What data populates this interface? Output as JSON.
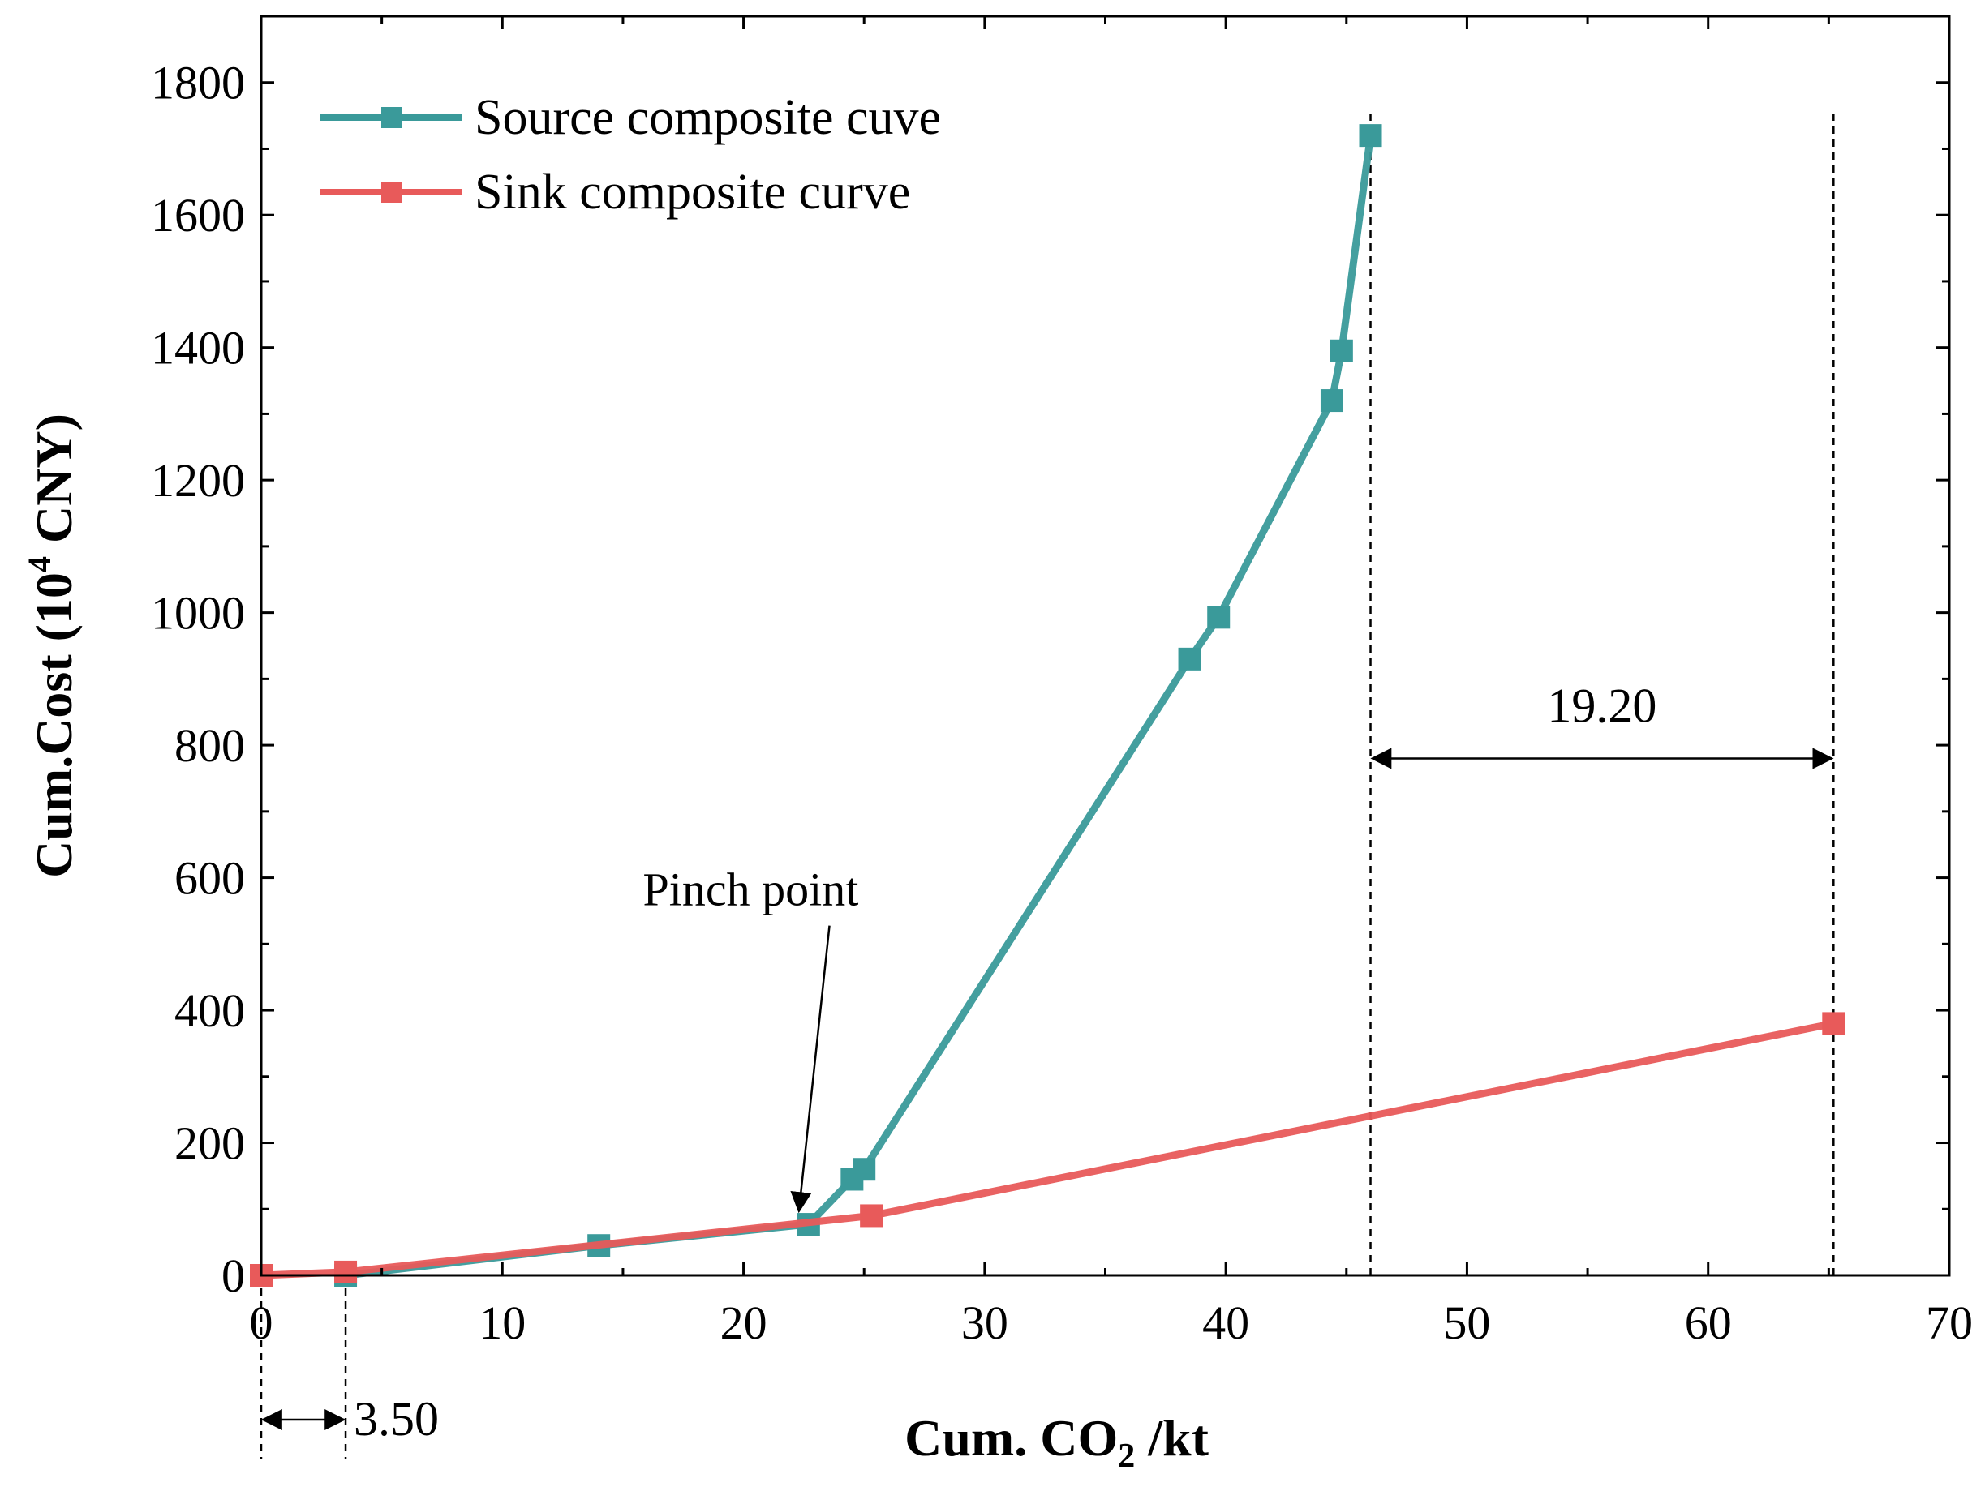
{
  "chart_data": {
    "type": "line",
    "title": "",
    "xlabel": {
      "prefix": "Cum. CO",
      "sub": "2",
      "suffix": " /kt"
    },
    "ylabel": {
      "prefix": "Cum.Cost (10",
      "sup": "4",
      "suffix": " CNY)"
    },
    "xlim": [
      0,
      70
    ],
    "ylim": [
      0,
      1900
    ],
    "x_ticks": [
      {
        "value": 0,
        "label": "0"
      },
      {
        "value": 10,
        "label": "10"
      },
      {
        "value": 20,
        "label": "20"
      },
      {
        "value": 30,
        "label": "30"
      },
      {
        "value": 40,
        "label": "40"
      },
      {
        "value": 50,
        "label": "50"
      },
      {
        "value": 60,
        "label": "60"
      },
      {
        "value": 70,
        "label": "70"
      }
    ],
    "y_ticks": [
      {
        "value": 0,
        "label": "0"
      },
      {
        "value": 200,
        "label": "200"
      },
      {
        "value": 400,
        "label": "400"
      },
      {
        "value": 600,
        "label": "600"
      },
      {
        "value": 800,
        "label": "800"
      },
      {
        "value": 1000,
        "label": "1000"
      },
      {
        "value": 1200,
        "label": "1200"
      },
      {
        "value": 1400,
        "label": "1400"
      },
      {
        "value": 1600,
        "label": "1600"
      },
      {
        "value": 1800,
        "label": "1800"
      }
    ],
    "legend_position": "top-left",
    "series": [
      {
        "name": "Source composite cuve",
        "color": "#3a9a9a",
        "x": [
          3.5,
          14.0,
          22.7,
          24.5,
          25.0,
          38.5,
          39.7,
          44.4,
          44.8,
          46.0
        ],
        "y": [
          0,
          45,
          77,
          145,
          160,
          930,
          993,
          1320,
          1395,
          1720
        ]
      },
      {
        "name": "Sink composite curve",
        "color": "#e85a5a",
        "x": [
          0,
          3.5,
          25.3,
          65.2
        ],
        "y": [
          0,
          5,
          90,
          380
        ]
      }
    ],
    "annotations": {
      "pinch": {
        "label": "Pinch point",
        "x": 22.7,
        "y": 77,
        "text_x": 16.5,
        "text_y": 540
      },
      "gap_right": {
        "label": "19.20",
        "x_start": 46.0,
        "x_end": 65.2,
        "y": 780
      },
      "gap_left": {
        "label": "3.50",
        "x_start": 0,
        "x_end": 3.5
      }
    }
  }
}
